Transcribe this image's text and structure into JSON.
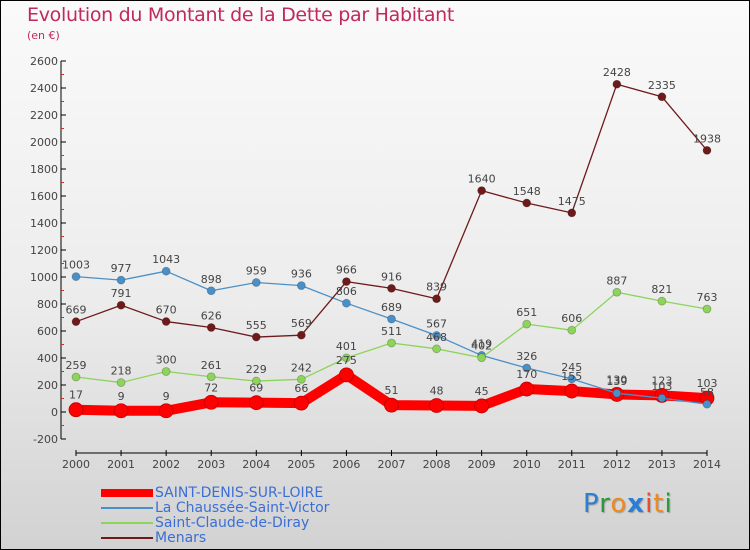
{
  "title": "Evolution du Montant de la Dette par Habitant",
  "subtitle": "(en €)",
  "logo": {
    "letters": [
      {
        "ch": "P",
        "color": "#2a7fd4"
      },
      {
        "ch": "r",
        "color": "#2a9a3c"
      },
      {
        "ch": "o",
        "color": "#f08a1c"
      },
      {
        "ch": "x",
        "color": "#2a7fd4"
      },
      {
        "ch": "i",
        "color": "#e84a2a"
      },
      {
        "ch": "t",
        "color": "#f08a1c"
      },
      {
        "ch": "i",
        "color": "#2a9a3c"
      }
    ]
  },
  "chart_data": {
    "type": "line",
    "title": "Evolution du Montant de la Dette par Habitant",
    "subtitle": "(en €)",
    "xlabel": "",
    "ylabel": "",
    "x": [
      "2000",
      "2001",
      "2002",
      "2003",
      "2004",
      "2005",
      "2006",
      "2007",
      "2008",
      "2009",
      "2010",
      "2011",
      "2012",
      "2013",
      "2014"
    ],
    "ylim": [
      -200,
      2600
    ],
    "yticks": [
      -200,
      0,
      200,
      400,
      600,
      800,
      1000,
      1200,
      1400,
      1600,
      1800,
      2000,
      2200,
      2400,
      2600
    ],
    "grid": false,
    "legend_position": "bottom-left",
    "series": [
      {
        "name": "SAINT-DENIS-SUR-LOIRE",
        "color": "#ff0000",
        "emphasis": true,
        "values": [
          17,
          9,
          9,
          72,
          69,
          66,
          275,
          51,
          48,
          45,
          170,
          155,
          130,
          123,
          103
        ]
      },
      {
        "name": "La Chaussée-Saint-Victor",
        "color": "#4a90c8",
        "emphasis": false,
        "values": [
          1003,
          977,
          1043,
          898,
          959,
          936,
          806,
          689,
          567,
          419,
          326,
          245,
          139,
          103,
          58
        ]
      },
      {
        "name": "Saint-Claude-de-Diray",
        "color": "#8cd45a",
        "emphasis": false,
        "values": [
          259,
          218,
          300,
          261,
          229,
          242,
          401,
          511,
          468,
          402,
          651,
          606,
          887,
          821,
          763
        ]
      },
      {
        "name": "Menars",
        "color": "#6e1a1a",
        "emphasis": false,
        "values": [
          669,
          791,
          670,
          626,
          555,
          569,
          966,
          916,
          839,
          1640,
          1548,
          1475,
          2428,
          2335,
          1938
        ]
      }
    ]
  }
}
